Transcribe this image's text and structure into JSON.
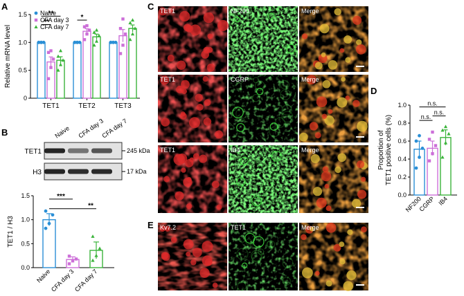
{
  "panels": {
    "A": "A",
    "B": "B",
    "C": "C",
    "D": "D",
    "E": "E"
  },
  "colors": {
    "naive": "#2a8fd6",
    "day3": "#cc6fd8",
    "day7": "#3bb43b",
    "tissue_red": "#d81f1f",
    "green_signal": "#33d633"
  },
  "chart_data": [
    {
      "id": "A",
      "type": "bar",
      "ylabel": "Relative mRNA level",
      "categories": [
        "TET1",
        "TET2",
        "TET3"
      ],
      "ylim": [
        0,
        1.5
      ],
      "yticks": [
        0,
        0.5,
        1.0,
        1.5
      ],
      "series": [
        {
          "name": "Naive",
          "values": [
            1.0,
            1.0,
            1.0
          ],
          "points": [
            [
              1.0,
              1.0,
              1.0,
              1.0,
              1.0
            ],
            [
              1.0,
              1.0,
              1.0,
              1.0,
              1.0
            ],
            [
              1.0,
              1.0,
              1.0,
              1.0,
              1.0
            ]
          ]
        },
        {
          "name": "CFA day 3",
          "values": [
            0.65,
            1.2,
            1.12
          ],
          "points": [
            [
              0.35,
              0.55,
              0.7,
              0.82,
              0.85
            ],
            [
              1.05,
              1.15,
              1.22,
              1.28,
              1.3
            ],
            [
              0.8,
              0.95,
              1.15,
              1.25,
              1.42
            ]
          ]
        },
        {
          "name": "CFA day 7",
          "values": [
            0.68,
            1.1,
            1.25
          ],
          "points": [
            [
              0.5,
              0.6,
              0.68,
              0.75,
              0.85
            ],
            [
              0.95,
              1.02,
              1.12,
              1.18,
              1.22
            ],
            [
              1.05,
              1.15,
              1.25,
              1.35,
              1.4
            ]
          ]
        }
      ],
      "sig": [
        "**",
        "**",
        "*"
      ],
      "legend_position": "top-left"
    },
    {
      "id": "B",
      "type": "bar",
      "ylabel": "TET1 / H3",
      "categories": [
        "Naive",
        "CFA day 3",
        "CFA day 7"
      ],
      "ylim": [
        0,
        1.5
      ],
      "yticks": [
        "0.0",
        "0.5",
        "1.0",
        "1.5"
      ],
      "values": [
        1.0,
        0.17,
        0.36
      ],
      "points": [
        [
          0.82,
          0.92,
          1.1,
          1.18
        ],
        [
          0.08,
          0.14,
          0.18,
          0.24
        ],
        [
          0.15,
          0.25,
          0.4,
          0.65
        ]
      ],
      "sig": [
        "***",
        "**"
      ]
    },
    {
      "id": "D",
      "type": "bar",
      "ylabel": "Proportion of\nTET1 positive cells (%)",
      "categories": [
        "NF200",
        "CGRP",
        "IB4"
      ],
      "ylim": [
        0,
        1.0
      ],
      "yticks": [
        "0.0",
        "0.2",
        "0.4",
        "0.6",
        "0.8",
        "1.0"
      ],
      "values": [
        0.51,
        0.52,
        0.64
      ],
      "points": [
        [
          0.3,
          0.42,
          0.52,
          0.6,
          0.66
        ],
        [
          0.38,
          0.46,
          0.55,
          0.62,
          0.7
        ],
        [
          0.42,
          0.58,
          0.68,
          0.72,
          0.76
        ]
      ],
      "sig": [
        "n.s.",
        "n.s.",
        "n.s."
      ]
    }
  ],
  "blot": {
    "lanes": [
      "Naive",
      "CFA day 3",
      "CFA day 7"
    ],
    "rows": [
      {
        "label": "TET1",
        "size": "245 kDa"
      },
      {
        "label": "H3",
        "size": "17 kDa"
      }
    ]
  },
  "micrographs": {
    "C": [
      [
        "TET1",
        "NF200",
        "Merge"
      ],
      [
        "TET1",
        "CGRP",
        "Merge"
      ],
      [
        "TET1",
        "IB4",
        "Merge"
      ]
    ],
    "E": [
      "Kv7.2",
      "TET1",
      "Merge"
    ]
  }
}
